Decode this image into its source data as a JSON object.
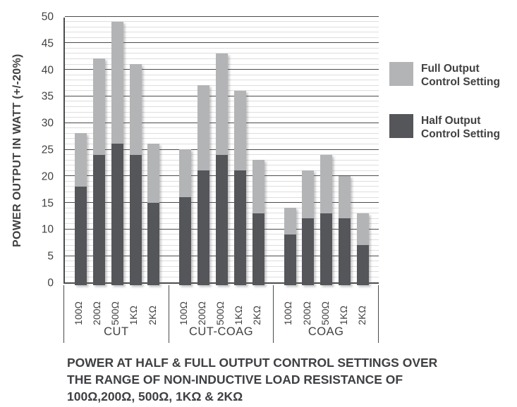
{
  "figure": {
    "caption_lines": [
      "POWER AT HALF & FULL OUTPUT CONTROL SETTINGS OVER",
      "THE RANGE OF NON-INDUCTIVE LOAD RESISTANCE OF",
      "100Ω,200Ω, 500Ω, 1KΩ & 2KΩ"
    ]
  },
  "chart_data": {
    "type": "bar",
    "stacked": true,
    "title": "",
    "xlabel": "",
    "ylabel": "POWER OUTPUT IN WATT (+/-20%)",
    "ylim": [
      0,
      50
    ],
    "y_ticks": [
      0,
      5,
      10,
      15,
      20,
      25,
      30,
      35,
      40,
      45,
      50
    ],
    "minor_grid_step": 1,
    "major_grid_step": 5,
    "grid": true,
    "legend_position": "right",
    "categories": [
      "100Ω",
      "200Ω",
      "500Ω",
      "1KΩ",
      "2KΩ"
    ],
    "groups": [
      {
        "label": "CUT",
        "bars": [
          {
            "category": "100Ω",
            "half": 18,
            "full": 28
          },
          {
            "category": "200Ω",
            "half": 24,
            "full": 42
          },
          {
            "category": "500Ω",
            "half": 26,
            "full": 49
          },
          {
            "category": "1KΩ",
            "half": 24,
            "full": 41
          },
          {
            "category": "2KΩ",
            "half": 15,
            "full": 26
          }
        ]
      },
      {
        "label": "CUT-COAG",
        "bars": [
          {
            "category": "100Ω",
            "half": 16,
            "full": 25
          },
          {
            "category": "200Ω",
            "half": 21,
            "full": 37
          },
          {
            "category": "500Ω",
            "half": 24,
            "full": 43
          },
          {
            "category": "1KΩ",
            "half": 21,
            "full": 36
          },
          {
            "category": "2KΩ",
            "half": 13,
            "full": 23
          }
        ]
      },
      {
        "label": "COAG",
        "bars": [
          {
            "category": "100Ω",
            "half": 9,
            "full": 14
          },
          {
            "category": "200Ω",
            "half": 12,
            "full": 21
          },
          {
            "category": "500Ω",
            "half": 13,
            "full": 24
          },
          {
            "category": "1KΩ",
            "half": 12,
            "full": 20
          },
          {
            "category": "2KΩ",
            "half": 7,
            "full": 13
          }
        ]
      }
    ],
    "legend": [
      {
        "label": "Full Output Control Setting",
        "color": "#b3b4b6"
      },
      {
        "label": "Half Output Control Setting",
        "color": "#55565a"
      }
    ],
    "colors": {
      "full_segment": "#b3b4b6",
      "half_segment": "#55565a",
      "major_grid": "#4b4c4e",
      "minor_grid": "#dedede",
      "text": "#414042"
    }
  }
}
